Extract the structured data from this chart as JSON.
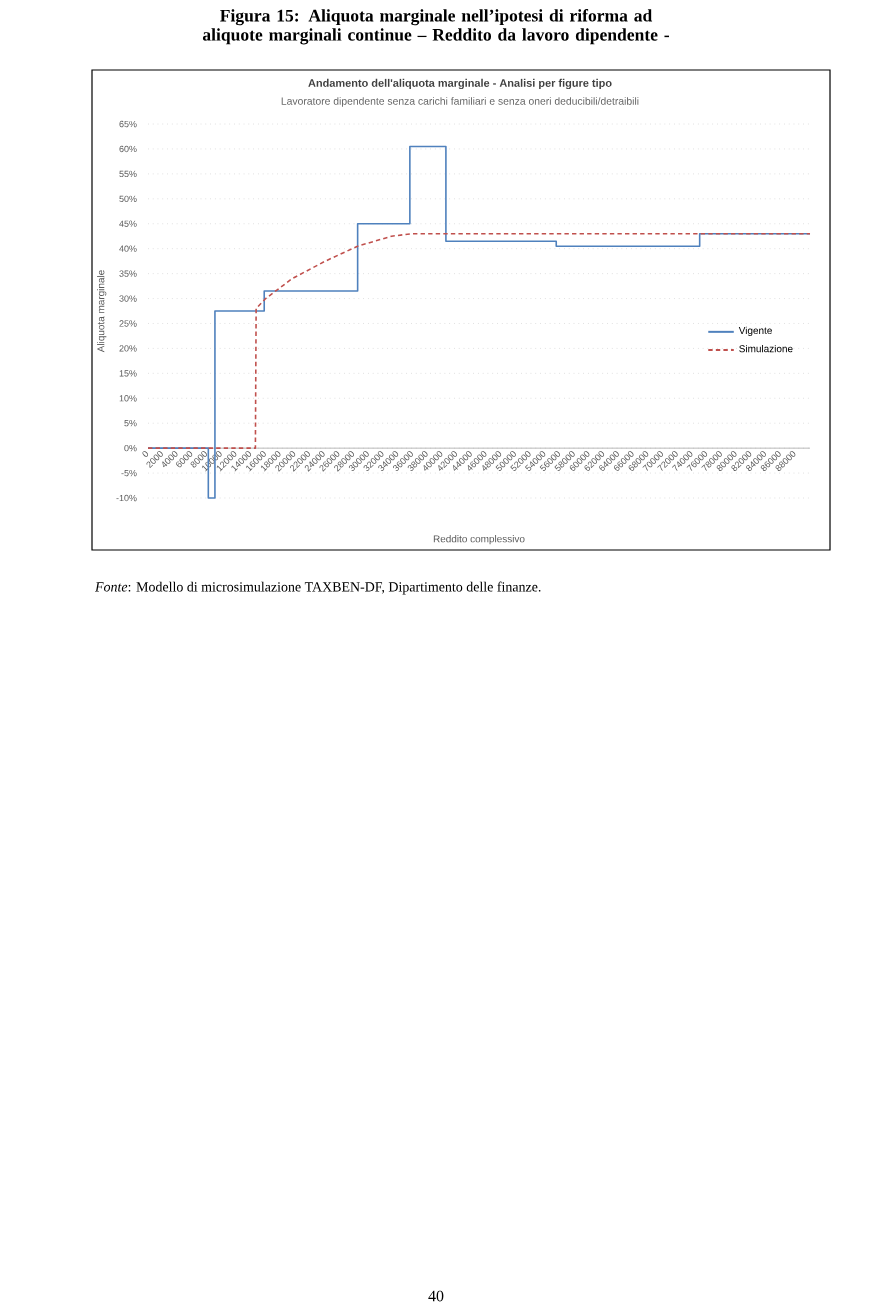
{
  "chart_data": {
    "type": "line",
    "title": "Andamento dell'aliquota marginale - Analisi per figure tipo",
    "subtitle": "Lavoratore dipendente senza carichi familiari e senza oneri deducibili/detraibili",
    "xlabel": "Reddito complessivo",
    "ylabel": "Aliquota marginale",
    "annotations": [
      "**Figura 15: Aliquota marginale nell’ipotesi di riforma ad aliquote marginali continue – Reddito da lavoro dipendente -**",
      "*Fonte*: Modello di microsimulazione TAXBEN-DF, Dipartimento delle finanze.",
      "40"
    ],
    "xlim": [
      0,
      90000
    ],
    "xticks": [
      0,
      2000,
      4000,
      6000,
      8000,
      10000,
      12000,
      14000,
      16000,
      18000,
      20000,
      22000,
      24000,
      26000,
      28000,
      30000,
      32000,
      34000,
      36000,
      38000,
      40000,
      42000,
      44000,
      46000,
      48000,
      50000,
      52000,
      54000,
      56000,
      58000,
      60000,
      62000,
      64000,
      66000,
      68000,
      70000,
      72000,
      74000,
      76000,
      78000,
      80000,
      82000,
      84000,
      86000,
      88000
    ],
    "ylim": [
      -10,
      65
    ],
    "yticks": [
      {
        "value": -10,
        "label": "-10%"
      },
      {
        "value": -5,
        "label": "-5%"
      },
      {
        "value": 0,
        "label": "0%"
      },
      {
        "value": 5,
        "label": "5%"
      },
      {
        "value": 10,
        "label": "10%"
      },
      {
        "value": 15,
        "label": "15%"
      },
      {
        "value": 20,
        "label": "20%"
      },
      {
        "value": 25,
        "label": "25%"
      },
      {
        "value": 30,
        "label": "30%"
      },
      {
        "value": 35,
        "label": "35%"
      },
      {
        "value": 40,
        "label": "40%"
      },
      {
        "value": 45,
        "label": "45%"
      },
      {
        "value": 50,
        "label": "50%"
      },
      {
        "value": 55,
        "label": "55%"
      },
      {
        "value": 60,
        "label": "60%"
      },
      {
        "value": 65,
        "label": "65%"
      }
    ],
    "grid": "y",
    "legend": "right",
    "series": [
      {
        "name": "Vigente",
        "type": "step",
        "color": "#4f81bd",
        "line_style": "solid",
        "x": [
          0,
          8200,
          9100,
          15800,
          28500,
          35600,
          40500,
          55500,
          75000,
          90000
        ],
        "values": [
          0,
          -10,
          27.5,
          31.5,
          45,
          60.5,
          41.5,
          40.5,
          43,
          43
        ]
      },
      {
        "name": "Simulazione",
        "color": "#c0504d",
        "line_style": "dashed",
        "x": [
          0,
          14600,
          14700,
          16000,
          19600,
          24100,
          28500,
          33100,
          35900,
          90000
        ],
        "values": [
          0,
          0,
          28,
          30,
          34,
          37.5,
          40.5,
          42.5,
          43,
          43
        ]
      }
    ]
  }
}
